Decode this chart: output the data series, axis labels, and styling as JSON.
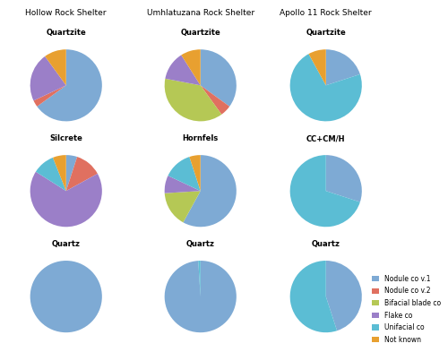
{
  "colors": {
    "nodule_v1": "#7eaad4",
    "nodule_v2": "#e07060",
    "bifacial_blade": "#b5c855",
    "flake": "#9b7fc8",
    "unifacial": "#5bbdd4",
    "not_known": "#e8a030"
  },
  "sites": [
    "Hollow Rock Shelter",
    "Umhlatuzana Rock Shelter",
    "Apollo 11 Rock Shelter"
  ],
  "rock_types": [
    [
      "Quartzite",
      "Silcrete",
      "Quartz"
    ],
    [
      "Quartzite",
      "Hornfels",
      "Quartz"
    ],
    [
      "Quartzite",
      "CC+CM/H",
      "Quartz"
    ]
  ],
  "pie_data": {
    "HRS_Quartzite": [
      65,
      3,
      0,
      22,
      0,
      10
    ],
    "HRS_Silcrete": [
      5,
      12,
      0,
      67,
      10,
      6
    ],
    "HRS_Quartz": [
      100,
      0,
      0,
      0,
      0,
      0
    ],
    "URS_Quartzite": [
      35,
      5,
      38,
      13,
      0,
      9
    ],
    "URS_Hornfels": [
      58,
      0,
      16,
      8,
      13,
      5
    ],
    "URS_Quartz": [
      99,
      0,
      0,
      0,
      1,
      0
    ],
    "A11_Quartzite": [
      20,
      0,
      0,
      0,
      72,
      8
    ],
    "A11_CCMH": [
      30,
      0,
      0,
      0,
      70,
      0
    ],
    "A11_Quartz": [
      45,
      0,
      0,
      0,
      55,
      0
    ]
  },
  "legend_labels": [
    "Nodule co v.1",
    "Nodule co v.2",
    "Bifacial blade co",
    "Flake co",
    "Unifacial co",
    "Not known"
  ],
  "fig_width": 5.0,
  "fig_height": 3.93,
  "dpi": 100
}
